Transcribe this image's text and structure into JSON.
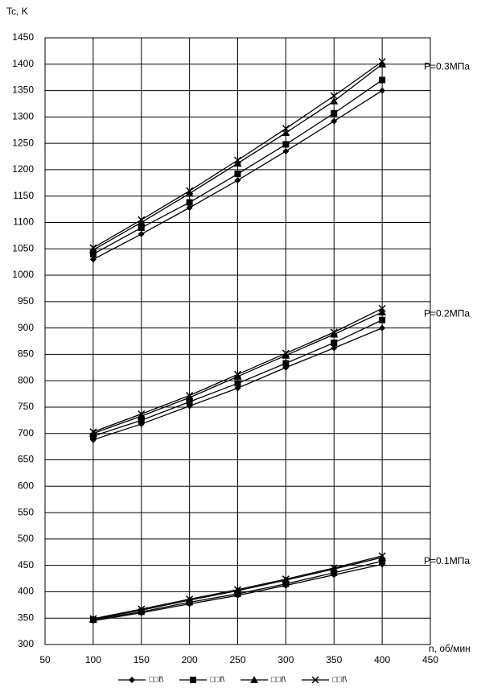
{
  "chart_data": {
    "type": "line",
    "y_label": "Tc, K",
    "x_label": "n, об/мин",
    "x": [
      100,
      150,
      200,
      250,
      300,
      350,
      400
    ],
    "xlim": [
      50,
      450
    ],
    "xticks": [
      50,
      100,
      150,
      200,
      250,
      300,
      350,
      400,
      450
    ],
    "ylim": [
      300,
      1450
    ],
    "yticks": [
      300,
      350,
      400,
      450,
      500,
      550,
      600,
      650,
      700,
      750,
      800,
      850,
      900,
      950,
      1000,
      1050,
      1100,
      1150,
      1200,
      1250,
      1300,
      1350,
      1400,
      1450
    ],
    "grid": true,
    "legend": "bottom",
    "annotations": [
      "P=0.1МПа",
      "P=0.2МПа",
      "P=0.3МПа"
    ],
    "series": [
      {
        "name": "□□ℓ\\",
        "marker": "diamond",
        "color": "#000000",
        "values": [
          [
            345,
            360,
            377,
            393,
            412,
            432,
            452
          ],
          [
            688,
            718,
            752,
            786,
            825,
            862,
            900
          ],
          [
            1030,
            1078,
            1128,
            1180,
            1235,
            1292,
            1350
          ]
        ]
      },
      {
        "name": "□□ℓ\\",
        "marker": "square",
        "color": "#000000",
        "values": [
          [
            347,
            362,
            380,
            396,
            415,
            436,
            458
          ],
          [
            695,
            725,
            760,
            795,
            833,
            872,
            915
          ],
          [
            1040,
            1090,
            1138,
            1192,
            1248,
            1307,
            1370
          ]
        ]
      },
      {
        "name": "□□ℓ\\",
        "marker": "triangle",
        "color": "#000000",
        "values": [
          [
            348,
            365,
            384,
            402,
            422,
            443,
            465
          ],
          [
            700,
            733,
            768,
            808,
            848,
            888,
            930
          ],
          [
            1048,
            1100,
            1155,
            1212,
            1270,
            1330,
            1400
          ]
        ]
      },
      {
        "name": "□□ℓ\\",
        "marker": "cross",
        "color": "#000000",
        "values": [
          [
            349,
            367,
            386,
            404,
            424,
            445,
            468
          ],
          [
            703,
            737,
            772,
            812,
            852,
            892,
            937
          ],
          [
            1052,
            1105,
            1160,
            1218,
            1278,
            1340,
            1405
          ]
        ]
      }
    ]
  }
}
